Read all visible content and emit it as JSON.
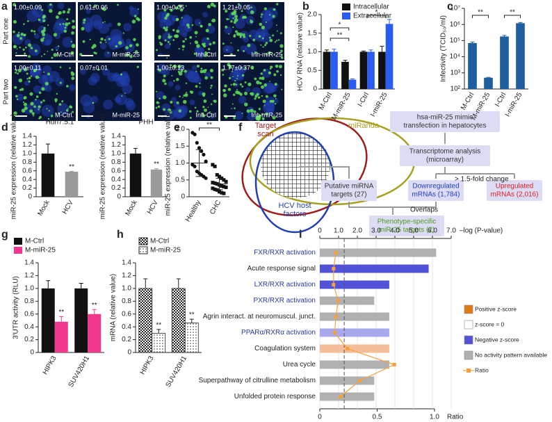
{
  "panel_a": {
    "label": "a",
    "rows": [
      "Part one",
      "Part two"
    ],
    "images": [
      [
        {
          "value": "1.00±0.09",
          "label": "M-Ctrl"
        },
        {
          "value": "0.61±0.06",
          "label": "M-miR-25"
        },
        {
          "value": "1.00±0.05",
          "label": "Inh-Ctrl"
        },
        {
          "value": "1.21±0.05",
          "label": "Inh-miR-25"
        }
      ],
      [
        {
          "value": "1.00±0.11",
          "label": "M-Ctrl."
        },
        {
          "value": "0.07±0.01",
          "label": "M-miR-25"
        },
        {
          "value": "1.00±0.13",
          "label": "Inh-Ctrl"
        },
        {
          "value": "1.77±0.37",
          "label": "Inh-miR-25"
        }
      ]
    ]
  },
  "panel_f": {
    "label": "f",
    "venn": [
      {
        "lines": [
          "Target",
          "scan"
        ],
        "color": "#a01c1c"
      },
      {
        "lines": [
          "miRanda"
        ],
        "color": "#a8a020"
      },
      {
        "lines": [
          "HCV host",
          "factors"
        ],
        "color": "#1f3fb0"
      }
    ],
    "boxes": [
      {
        "lines": [
          "hsa-miR-25 mimic",
          "transfection in hepatocytes"
        ],
        "color": "#333333"
      },
      {
        "lines": [
          "Transcriptome analysis",
          "(microarray)"
        ],
        "color": "#333333"
      },
      {
        "lines": [
          "Putative miRNA",
          "targets (27)"
        ],
        "color": "#333333"
      },
      {
        "lines": [
          "Downregulated",
          "mRNAs (1,784)"
        ],
        "color": "#1f3fd0"
      },
      {
        "lines": [
          "Upregulated",
          "mRNAs (2,016)"
        ],
        "color": "#e02020"
      },
      {
        "lines": [
          "Phenotype-specific",
          "miR-25 targets (2)"
        ],
        "color": "#4e9a1e"
      }
    ],
    "notes": [
      "> 1.5-fold change",
      "Overlaps"
    ]
  },
  "chart_data": [
    {
      "panel": "b",
      "type": "bar",
      "categories": [
        "M-Ctrl",
        "M-miR-25",
        "I-Ctrl",
        "I-miR-25"
      ],
      "series": [
        {
          "name": "Intracellular",
          "color": "#111111",
          "values": [
            1.0,
            0.73,
            1.0,
            1.0
          ],
          "errors": [
            0.05,
            0.04,
            0.02,
            0.15
          ]
        },
        {
          "name": "Extracellular",
          "color": "#2a5cf0",
          "values": [
            1.0,
            0.25,
            1.0,
            1.75
          ],
          "errors": [
            0.07,
            0.02,
            0.05,
            0.12
          ]
        }
      ],
      "ylabel": "HCV RNA (relative value)",
      "ylim": [
        0,
        2.0
      ],
      "yticks": [
        0,
        0.5,
        {
          "value": 1.0,
          "label": "1.0"
        },
        1.5,
        {
          "value": 2.0,
          "label": "2.0"
        }
      ],
      "significance": [
        "*",
        "**",
        "*"
      ]
    },
    {
      "panel": "c",
      "type": "bar",
      "log_scale": true,
      "categories": [
        "M-Ctrl",
        "M-miR-25",
        "I-Ctrl",
        "I-miR-25"
      ],
      "series": [
        {
          "color": "#1f5f9e",
          "values": [
            70000,
            500,
            180000,
            1200000
          ],
          "errors": [
            12000,
            30,
            30000,
            120000
          ]
        }
      ],
      "ylabel": "Infectivity (TCID₅₀/ml)",
      "ylim": [
        100,
        10000000
      ],
      "yticks": [
        {
          "value": 100,
          "label": "10²"
        },
        {
          "value": 1000,
          "label": "10³"
        },
        {
          "value": 10000,
          "label": "10⁴"
        },
        {
          "value": 100000,
          "label": "10⁵"
        },
        {
          "value": 1000000,
          "label": "10⁶"
        },
        {
          "value": 10000000,
          "label": "10⁷"
        }
      ],
      "significance": [
        "**",
        "**"
      ]
    },
    {
      "panel": "d",
      "type": "bar",
      "title": "Huh7.5.1",
      "categories": [
        "Mock",
        "HCV"
      ],
      "series": [
        {
          "colors": [
            "#111111",
            "#9a9a9a"
          ],
          "values": [
            1.0,
            0.58
          ],
          "errors": [
            0.22,
            0.01
          ]
        }
      ],
      "ylabel": "miR-25 expression (relative value)",
      "ylim": [
        0,
        1.4
      ],
      "yticks": [
        0,
        0.2,
        0.4,
        0.6,
        0.8,
        {
          "value": 1.0,
          "label": "1.0"
        },
        1.2,
        1.4
      ],
      "significance": [
        "**"
      ]
    },
    {
      "type": "bar",
      "title": "PHH",
      "categories": [
        "Mock",
        "HCV"
      ],
      "series": [
        {
          "colors": [
            "#111111",
            "#9a9a9a"
          ],
          "values": [
            1.0,
            0.63
          ],
          "errors": [
            0.12,
            0.02
          ]
        }
      ],
      "ylabel": "miR-25 expression (relative value)",
      "ylim": [
        0,
        1.4
      ],
      "yticks": [
        0,
        0.2,
        0.4,
        0.6,
        0.8,
        {
          "value": 1.0,
          "label": "1.0"
        },
        1.2,
        1.4
      ],
      "significance": [
        "**"
      ]
    },
    {
      "panel": "e",
      "type": "strip",
      "categories": [
        "Healthy",
        "CHC"
      ],
      "markers": [
        "circle",
        "square"
      ],
      "points": [
        [
          1.9,
          1.85,
          1.6,
          1.45,
          1.35,
          1.25,
          1.05,
          0.95,
          0.9,
          0.75,
          0.7,
          0.65,
          0.6,
          0.55
        ],
        [
          0.95,
          0.9,
          0.65,
          0.6,
          0.55,
          0.5,
          0.45,
          0.42,
          0.4,
          0.38,
          0.35,
          0.32,
          0.3,
          0.28,
          0.25,
          0.22,
          0.2,
          0.15,
          0.12,
          0.1
        ]
      ],
      "means": [
        1.0,
        0.38
      ],
      "sds": [
        0.4,
        0.17
      ],
      "ylabel": "miR-25 expression (relative value)",
      "ylim": [
        0,
        2.0
      ],
      "yticks": [
        0,
        0.5,
        {
          "value": 1.0,
          "label": "1.0"
        },
        1.5,
        {
          "value": 2.0,
          "label": "2.0"
        }
      ],
      "significance": [
        "**"
      ]
    },
    {
      "panel": "g",
      "type": "bar",
      "categories": [
        "HIPK3",
        "SUV420H1"
      ],
      "series": [
        {
          "name": "M-Ctrl",
          "color": "#111111",
          "values": [
            1.0,
            1.0
          ],
          "errors": [
            0.12,
            0.08
          ]
        },
        {
          "name": "M-miR-25",
          "color": "#f0388c",
          "values": [
            0.48,
            0.6
          ],
          "errors": [
            0.08,
            0.07
          ]
        }
      ],
      "ylabel": "3′UTR activity (RLU)",
      "ylim": [
        0,
        1.4
      ],
      "yticks": [
        0,
        0.2,
        0.4,
        0.6,
        0.8,
        {
          "value": 1.0,
          "label": "1.0"
        },
        1.2,
        1.4
      ],
      "significance": [
        "**",
        "**"
      ]
    },
    {
      "panel": "h",
      "type": "bar",
      "categories": [
        "HIPK3",
        "SUV420H1"
      ],
      "series": [
        {
          "name": "M-Ctrl",
          "color": "#222222",
          "pattern": "check",
          "values": [
            1.0,
            1.0
          ],
          "errors": [
            0.15,
            0.15
          ]
        },
        {
          "name": "M-miR-25",
          "color": "#222222",
          "pattern": "dots",
          "values": [
            0.3,
            0.46
          ],
          "errors": [
            0.06,
            0.06
          ]
        }
      ],
      "ylabel": "mRNA (relative value)",
      "ylim": [
        0,
        1.4
      ],
      "yticks": [
        0,
        0.2,
        0.4,
        0.6,
        0.8,
        {
          "value": 1.0,
          "label": "1.0"
        },
        1.2,
        1.4
      ],
      "significance": [
        "**",
        "**"
      ]
    },
    {
      "panel": "i",
      "type": "hbar",
      "categories": [
        "FXR/RXR activation",
        "Acute response signal",
        "LXR/RXR activation",
        "PXR/RXR activation",
        "Agrin interact. at neuromuscul. junct.",
        "PPARα/RXRα activation",
        "Coagulation system",
        "Urea cycle",
        "Superpathway of citrulline metabolism",
        "Unfolded protein response"
      ],
      "label_colors": [
        "#2a3aa0",
        "#222222",
        "#2a3aa0",
        "#2a3aa0",
        "#222222",
        "#2a3aa0",
        "#222222",
        "#222222",
        "#222222",
        "#222222"
      ],
      "values": [
        6.2,
        5.8,
        3.7,
        2.9,
        3.7,
        3.7,
        3.7,
        3.7,
        2.9,
        2.9
      ],
      "colors": [
        "#b0b0b0",
        "#5252d8",
        "#5252d8",
        "#b0b0b0",
        "#b0b0b0",
        "#a8a8ec",
        "#f5be9a",
        "#b0b0b0",
        "#b0b0b0",
        "#b0b0b0"
      ],
      "ratio": [
        0.14,
        0.12,
        0.12,
        0.16,
        0.14,
        0.13,
        0.24,
        0.65,
        0.35,
        0.18
      ],
      "ratio_color": "#f4a13c",
      "threshold": 1.3,
      "grid": true,
      "xlabel": "–log (P-value)",
      "xlim": [
        0,
        7.0
      ],
      "xticks": [
        0,
        {
          "value": 1.0,
          "label": "1.0"
        },
        {
          "value": 2.0,
          "label": "2.0"
        },
        {
          "value": 3.0,
          "label": "3.0"
        },
        {
          "value": 4.0,
          "label": "4.0"
        },
        {
          "value": 5.0,
          "label": "5.0"
        },
        {
          "value": 6.0,
          "label": "6.0"
        },
        {
          "value": 7.0,
          "label": "7.0"
        }
      ],
      "x2label": "Ratio",
      "x2lim": [
        0,
        1.0
      ],
      "x2ticks": [
        0,
        0.5,
        {
          "value": 1.0,
          "label": "1.0"
        }
      ],
      "legend": [
        {
          "name": "Positive z-score",
          "color": "#e07b17"
        },
        {
          "name": "z-score = 0",
          "color": "#ffffff"
        },
        {
          "name": "Negative z-score",
          "color": "#5252d8"
        },
        {
          "name": "No activity pattern available",
          "color": "#b0b0b0"
        }
      ],
      "ratio_name": "Ratio"
    }
  ]
}
